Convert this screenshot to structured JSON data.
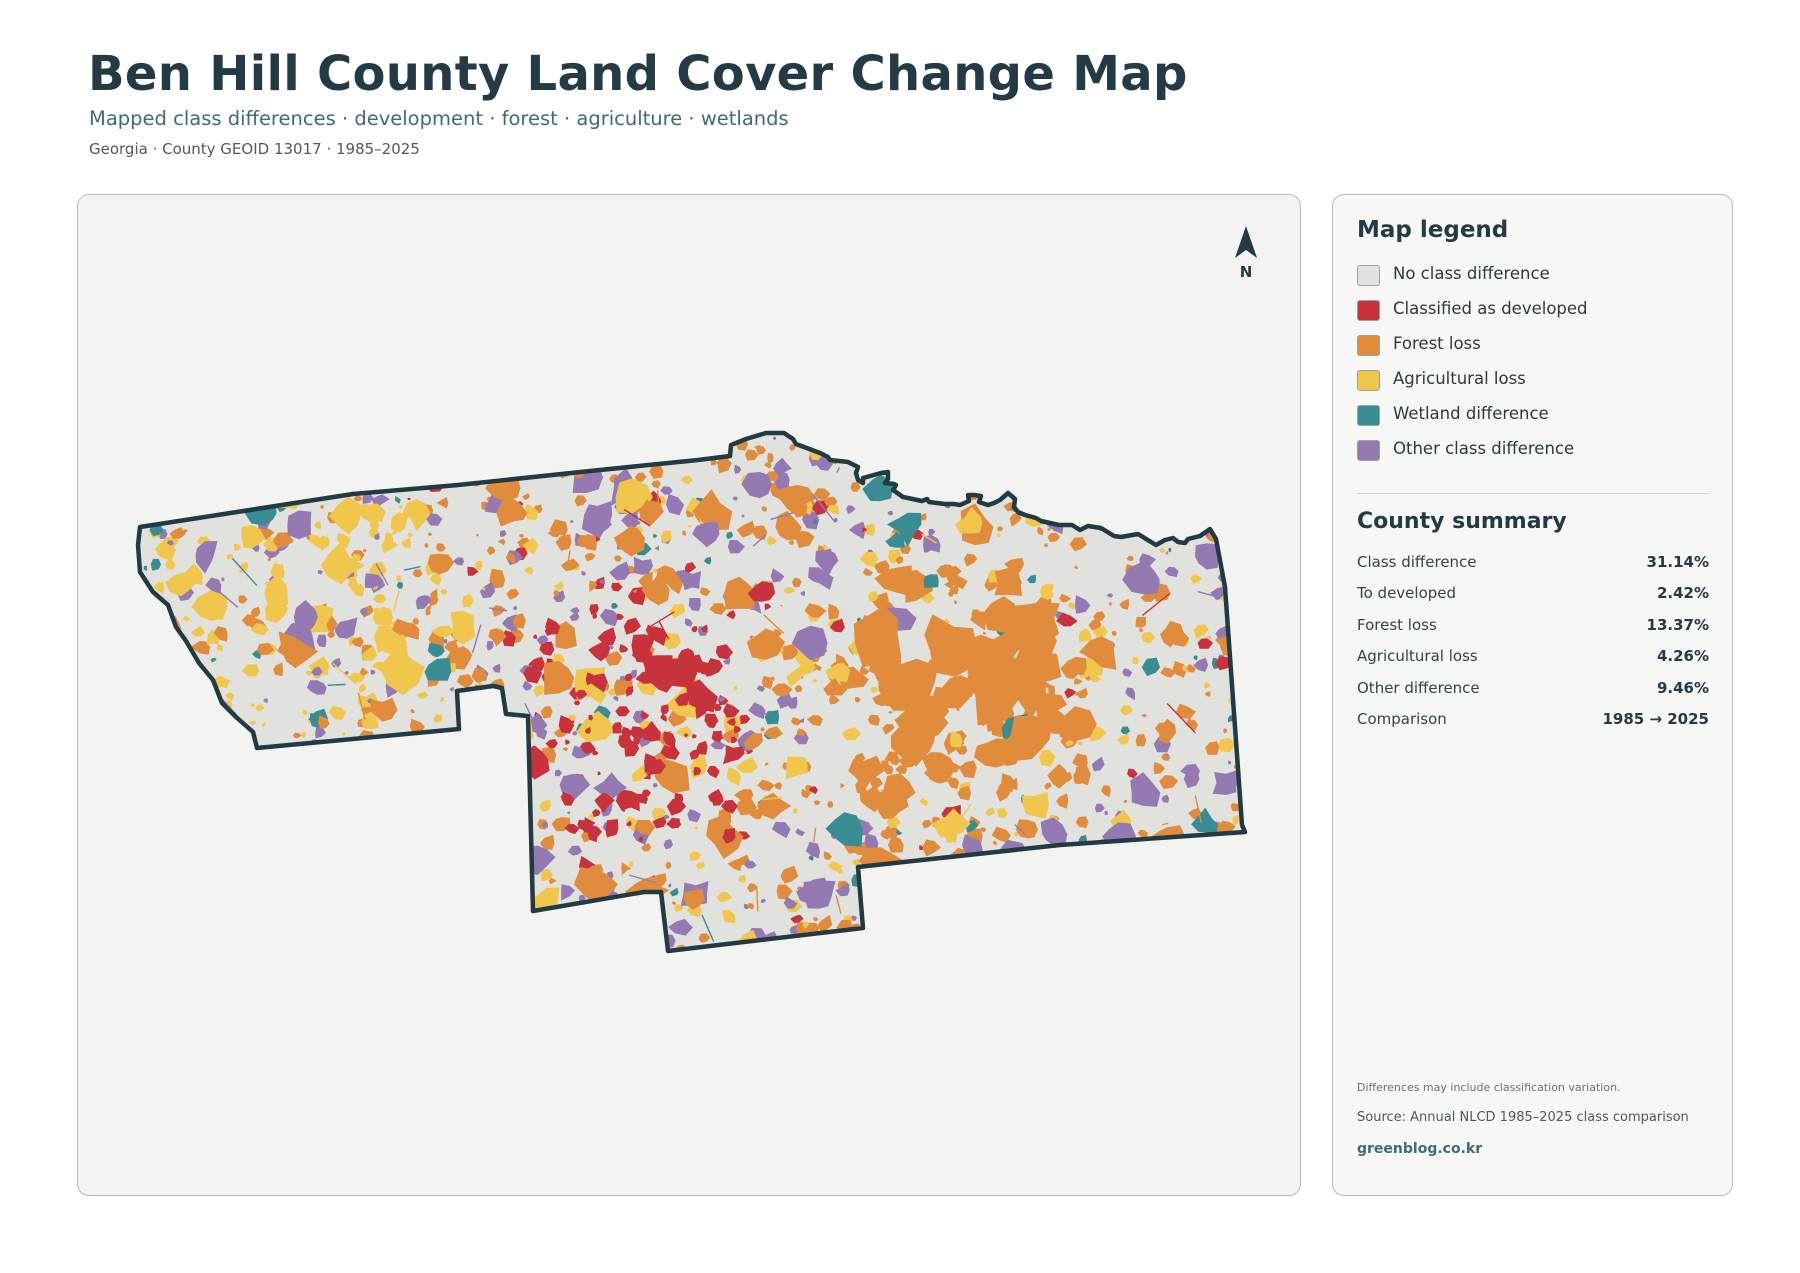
{
  "header": {
    "title": "Ben Hill County Land Cover Change Map",
    "subtitle": "Mapped class differences · development · forest · agriculture · wetlands",
    "meta": "Georgia · County GEOID 13017 · 1985–2025"
  },
  "map": {
    "north_label": "N",
    "boundary_color": "#223a42",
    "base_color": "#e1e1dd",
    "panel_color": "#f3f3f1"
  },
  "legend": {
    "heading": "Map legend",
    "items": [
      {
        "label": "No class difference",
        "color": "#e2e2df"
      },
      {
        "label": "Classified as developed",
        "color": "#c8323d"
      },
      {
        "label": "Forest loss",
        "color": "#e08c3c"
      },
      {
        "label": "Agricultural loss",
        "color": "#f0c64c"
      },
      {
        "label": "Wetland difference",
        "color": "#3a8c93"
      },
      {
        "label": "Other class difference",
        "color": "#9479b2"
      }
    ]
  },
  "summary": {
    "heading": "County summary",
    "rows": [
      {
        "label": "Class difference",
        "value": "31.14%"
      },
      {
        "label": "To developed",
        "value": "2.42%"
      },
      {
        "label": "Forest loss",
        "value": "13.37%"
      },
      {
        "label": "Agricultural loss",
        "value": "4.26%"
      },
      {
        "label": "Other difference",
        "value": "9.46%"
      },
      {
        "label": "Comparison",
        "value": "1985 → 2025"
      }
    ]
  },
  "footer": {
    "note": "Differences may include classification variation.",
    "source": "Source: Annual NLCD 1985–2025 class comparison",
    "site": "greenblog.co.kr"
  }
}
